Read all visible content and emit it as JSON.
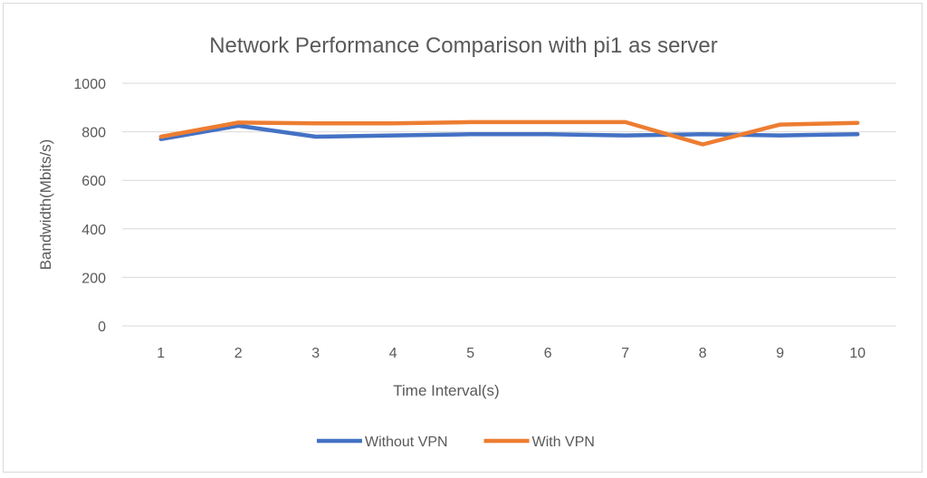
{
  "chart_data": {
    "type": "line",
    "title": "Network Performance  Comparison  with pi1 as server",
    "xlabel": "Time Interval(s)",
    "ylabel": "Bandwidth(Mbits/s)",
    "x": [
      1,
      2,
      3,
      4,
      5,
      6,
      7,
      8,
      9,
      10
    ],
    "ylim": [
      0,
      1000
    ],
    "yticks": [
      0,
      200,
      400,
      600,
      800,
      1000
    ],
    "grid": true,
    "legend_position": "bottom",
    "series": [
      {
        "name": "Without VPN",
        "color": "#4472C4",
        "values": [
          770,
          825,
          780,
          785,
          790,
          790,
          785,
          790,
          785,
          790
        ]
      },
      {
        "name": "With VPN",
        "color": "#ED7D31",
        "values": [
          780,
          838,
          835,
          835,
          840,
          840,
          840,
          748,
          830,
          837
        ]
      }
    ]
  }
}
